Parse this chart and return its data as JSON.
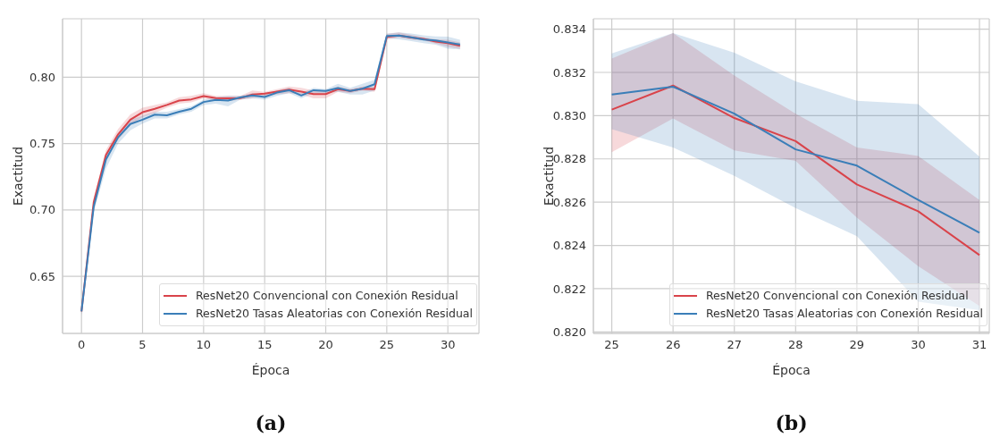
{
  "chart_data": [
    {
      "type": "line",
      "title": "(a)",
      "xlabel": "Época",
      "ylabel": "Exactitud",
      "x": [
        0,
        1,
        2,
        3,
        4,
        5,
        6,
        7,
        8,
        9,
        10,
        11,
        12,
        13,
        14,
        15,
        16,
        17,
        18,
        19,
        20,
        21,
        22,
        23,
        24,
        25,
        26,
        27,
        28,
        29,
        30,
        31
      ],
      "series": [
        {
          "name": "ResNet20 Convencional con Conexión Residual",
          "color": "#d9434a",
          "values": [
            0.6236,
            0.7058,
            0.7413,
            0.7569,
            0.768,
            0.7736,
            0.7762,
            0.7791,
            0.7824,
            0.7833,
            0.7858,
            0.7842,
            0.784,
            0.7842,
            0.7869,
            0.7876,
            0.7891,
            0.7907,
            0.7891,
            0.7873,
            0.7873,
            0.7909,
            0.7896,
            0.7913,
            0.7909,
            0.8303,
            0.8314,
            0.8299,
            0.8288,
            0.8268,
            0.8256,
            0.8236
          ],
          "lower": [
            0.621,
            0.703,
            0.738,
            0.753,
            0.764,
            0.77,
            0.773,
            0.777,
            0.78,
            0.781,
            0.784,
            0.782,
            0.782,
            0.783,
            0.784,
            0.786,
            0.787,
            0.788,
            0.787,
            0.784,
            0.784,
            0.789,
            0.788,
            0.79,
            0.789,
            0.8283,
            0.8299,
            0.8284,
            0.8279,
            0.8253,
            0.823,
            0.8212
          ],
          "upper": [
            0.626,
            0.709,
            0.745,
            0.761,
            0.772,
            0.777,
            0.779,
            0.781,
            0.785,
            0.786,
            0.788,
            0.786,
            0.786,
            0.786,
            0.79,
            0.789,
            0.791,
            0.793,
            0.792,
            0.79,
            0.79,
            0.793,
            0.791,
            0.793,
            0.793,
            0.8326,
            0.8338,
            0.8319,
            0.8301,
            0.8285,
            0.8281,
            0.8261
          ]
        },
        {
          "name": "ResNet20 Tasas Aleatorias con Conexión Residual",
          "color": "#3a7eb8",
          "values": [
            0.6236,
            0.7024,
            0.738,
            0.7547,
            0.7647,
            0.768,
            0.7718,
            0.7713,
            0.774,
            0.7762,
            0.7813,
            0.7829,
            0.7824,
            0.7847,
            0.7862,
            0.7851,
            0.7884,
            0.7902,
            0.7862,
            0.7902,
            0.7896,
            0.7918,
            0.7896,
            0.7913,
            0.7947,
            0.831,
            0.8313,
            0.8301,
            0.8284,
            0.8277,
            0.8261,
            0.8246
          ],
          "lower": [
            0.62,
            0.698,
            0.731,
            0.75,
            0.76,
            0.765,
            0.769,
            0.769,
            0.772,
            0.774,
            0.779,
            0.78,
            0.778,
            0.783,
            0.784,
            0.783,
            0.786,
            0.788,
            0.784,
            0.788,
            0.788,
            0.789,
            0.787,
            0.787,
            0.79,
            0.8294,
            0.8285,
            0.8272,
            0.8257,
            0.8244,
            0.8214,
            0.821
          ],
          "upper": [
            0.627,
            0.706,
            0.742,
            0.758,
            0.768,
            0.771,
            0.774,
            0.774,
            0.776,
            0.778,
            0.783,
            0.785,
            0.786,
            0.786,
            0.788,
            0.787,
            0.79,
            0.792,
            0.788,
            0.792,
            0.791,
            0.795,
            0.792,
            0.795,
            0.798,
            0.8329,
            0.8338,
            0.8329,
            0.8316,
            0.8307,
            0.8305,
            0.8281
          ]
        }
      ],
      "xlim": [
        -1.55,
        32.55
      ],
      "xticks": [
        0,
        5,
        10,
        15,
        20,
        25,
        30
      ],
      "ylim": [
        0.607,
        0.844
      ],
      "yticks": [
        0.65,
        {
          "value": 0.7,
          "label": "0.70"
        },
        0.75,
        {
          "value": 0.8,
          "label": "0.80"
        }
      ],
      "grid": true,
      "legend": "bottom right"
    },
    {
      "type": "line",
      "title": "(b)",
      "xlabel": "Época",
      "ylabel": "Exactitud",
      "x": [
        25,
        26,
        27,
        28,
        29,
        30,
        31
      ],
      "series": [
        {
          "name": "ResNet20 Convencional con Conexión Residual",
          "color": "#d9434a",
          "values": [
            0.83028,
            0.83139,
            0.82989,
            0.82882,
            0.82682,
            0.82558,
            0.82355
          ],
          "lower": [
            0.82831,
            0.82987,
            0.82839,
            0.82791,
            0.82528,
            0.82304,
            0.8212
          ],
          "upper": [
            0.83264,
            0.83382,
            0.83186,
            0.83009,
            0.82853,
            0.82814,
            0.8261
          ]
        },
        {
          "name": "ResNet20 Tasas Aleatorias con Conexión Residual",
          "color": "#3a7eb8",
          "values": [
            0.83098,
            0.83134,
            0.83009,
            0.82844,
            0.82769,
            0.8261,
            0.82459
          ],
          "lower": [
            0.82937,
            0.82853,
            0.82722,
            0.82573,
            0.82443,
            0.8214,
            0.821
          ],
          "upper": [
            0.83288,
            0.83382,
            0.83291,
            0.83159,
            0.83069,
            0.83053,
            0.8281
          ]
        }
      ],
      "xlim": [
        24.7,
        31.16
      ],
      "xticks": [
        25,
        26,
        27,
        28,
        29,
        30,
        31
      ],
      "ylim": [
        0.81993,
        0.83448
      ],
      "yticks": [
        {
          "value": 0.82,
          "label": "0.820"
        },
        0.822,
        0.824,
        0.826,
        0.828,
        {
          "value": 0.83,
          "label": "0.830"
        },
        0.832,
        0.834
      ],
      "grid": true,
      "legend": "bottom right"
    }
  ]
}
